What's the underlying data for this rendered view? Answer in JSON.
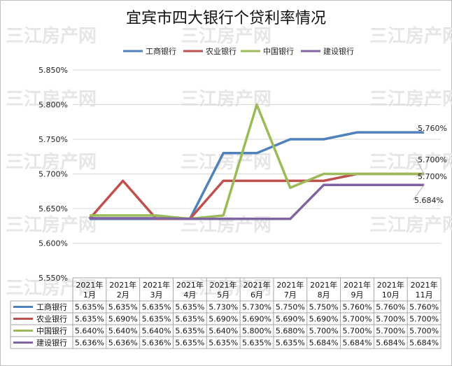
{
  "chart_data": {
    "type": "line",
    "title": "宜宾市四大银行个贷利率情况",
    "watermark": "三江房产网",
    "categories": [
      [
        "2021年",
        "1月"
      ],
      [
        "2021年",
        "2月"
      ],
      [
        "2021年",
        "3月"
      ],
      [
        "2021年",
        "4月"
      ],
      [
        "2021年",
        "5月"
      ],
      [
        "2021年",
        "6月"
      ],
      [
        "2021年",
        "7月"
      ],
      [
        "2021年",
        "8月"
      ],
      [
        "2021年",
        "9月"
      ],
      [
        "2021年",
        "10月"
      ],
      [
        "2021年",
        "11月"
      ]
    ],
    "y_ticks": [
      "5.550%",
      "5.600%",
      "5.650%",
      "5.700%",
      "5.750%",
      "5.800%",
      "5.850%"
    ],
    "ylim": [
      5.55,
      5.85
    ],
    "grid": true,
    "legend_position": "top",
    "series": [
      {
        "name": "工商银行",
        "color": "#4f81bd",
        "values": [
          5.635,
          5.635,
          5.635,
          5.635,
          5.73,
          5.73,
          5.75,
          5.75,
          5.76,
          5.76,
          5.76
        ],
        "labels": [
          "5.635%",
          "5.635%",
          "5.635%",
          "5.635%",
          "5.730%",
          "5.730%",
          "5.750%",
          "5.750%",
          "5.760%",
          "5.760%",
          "5.760%"
        ]
      },
      {
        "name": "农业银行",
        "color": "#c0504d",
        "values": [
          5.635,
          5.69,
          5.635,
          5.635,
          5.69,
          5.69,
          5.69,
          5.69,
          5.7,
          5.7,
          5.7
        ],
        "labels": [
          "5.635%",
          "5.690%",
          "5.635%",
          "5.635%",
          "5.690%",
          "5.690%",
          "5.690%",
          "5.690%",
          "5.700%",
          "5.700%",
          "5.700%"
        ]
      },
      {
        "name": "中国银行",
        "color": "#9bbb59",
        "values": [
          5.64,
          5.64,
          5.64,
          5.635,
          5.64,
          5.8,
          5.68,
          5.7,
          5.7,
          5.7,
          5.7
        ],
        "labels": [
          "5.640%",
          "5.640%",
          "5.640%",
          "5.635%",
          "5.640%",
          "5.800%",
          "5.680%",
          "5.700%",
          "5.700%",
          "5.700%",
          "5.700%"
        ]
      },
      {
        "name": "建设银行",
        "color": "#8064a2",
        "values": [
          5.636,
          5.636,
          5.636,
          5.635,
          5.635,
          5.635,
          5.635,
          5.684,
          5.684,
          5.684,
          5.684
        ],
        "labels": [
          "5.636%",
          "5.636%",
          "5.636%",
          "5.635%",
          "5.635%",
          "5.635%",
          "5.635%",
          "5.684%",
          "5.684%",
          "5.684%",
          "5.684%"
        ]
      }
    ],
    "end_labels": [
      "5.760%",
      "5.700%",
      "5.700%",
      "5.684%"
    ]
  }
}
